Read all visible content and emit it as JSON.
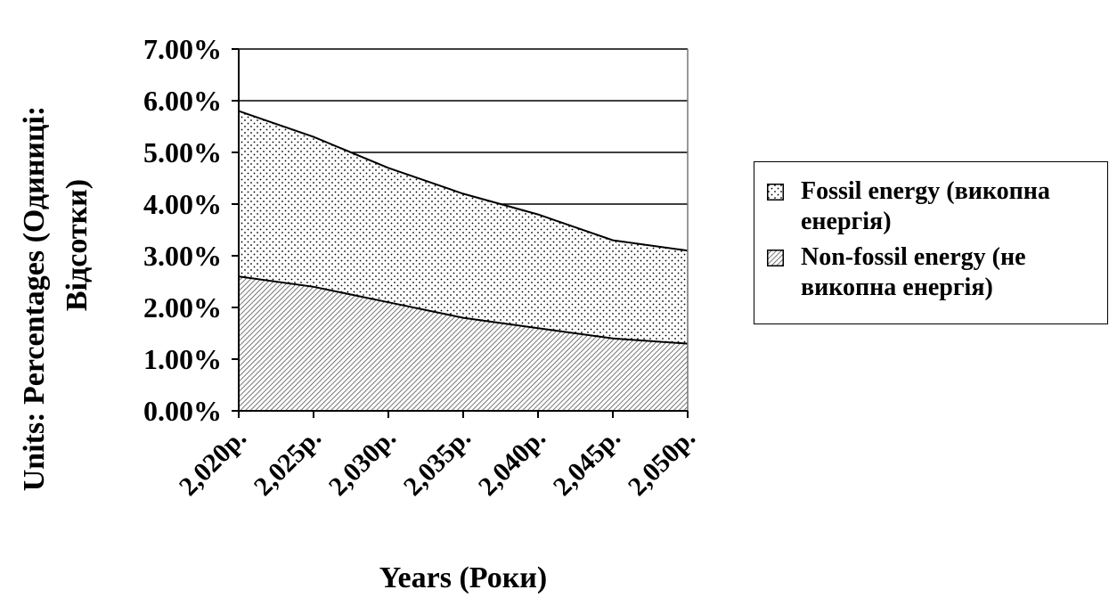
{
  "chart_data": {
    "type": "area",
    "stacked": true,
    "categories": [
      "2,020р.",
      "2,025р.",
      "2,030р.",
      "2,035р.",
      "2,040р.",
      "2,045р.",
      "2,050р."
    ],
    "series": [
      {
        "name": "Non-fossil energy (не викопна енергія)",
        "values": [
          2.6,
          2.4,
          2.1,
          1.8,
          1.6,
          1.4,
          1.3
        ],
        "pattern": "diagonal-hatch"
      },
      {
        "name": "Fossil energy (викопна енергія)",
        "values": [
          3.2,
          2.9,
          2.6,
          2.4,
          2.2,
          1.9,
          1.8
        ],
        "pattern": "dots"
      }
    ],
    "totals": [
      5.8,
      5.3,
      4.7,
      4.2,
      3.8,
      3.3,
      3.1
    ],
    "y_ticks": [
      "0.00%",
      "1.00%",
      "2.00%",
      "3.00%",
      "4.00%",
      "5.00%",
      "6.00%",
      "7.00%"
    ],
    "ylim": [
      0,
      7
    ],
    "xlabel": "Years (Роки)",
    "ylabel_line1": "Units: Percentages (Одиниці:",
    "ylabel_line2": "Відсотки)",
    "grid": true,
    "legend_position": "right"
  },
  "legend": {
    "fossil_line1": "Fossil energy (викопна",
    "fossil_line2": "енергія)",
    "nonfossil_line1": "Non-fossil energy (не",
    "nonfossil_line2": "викопна енергія)"
  }
}
